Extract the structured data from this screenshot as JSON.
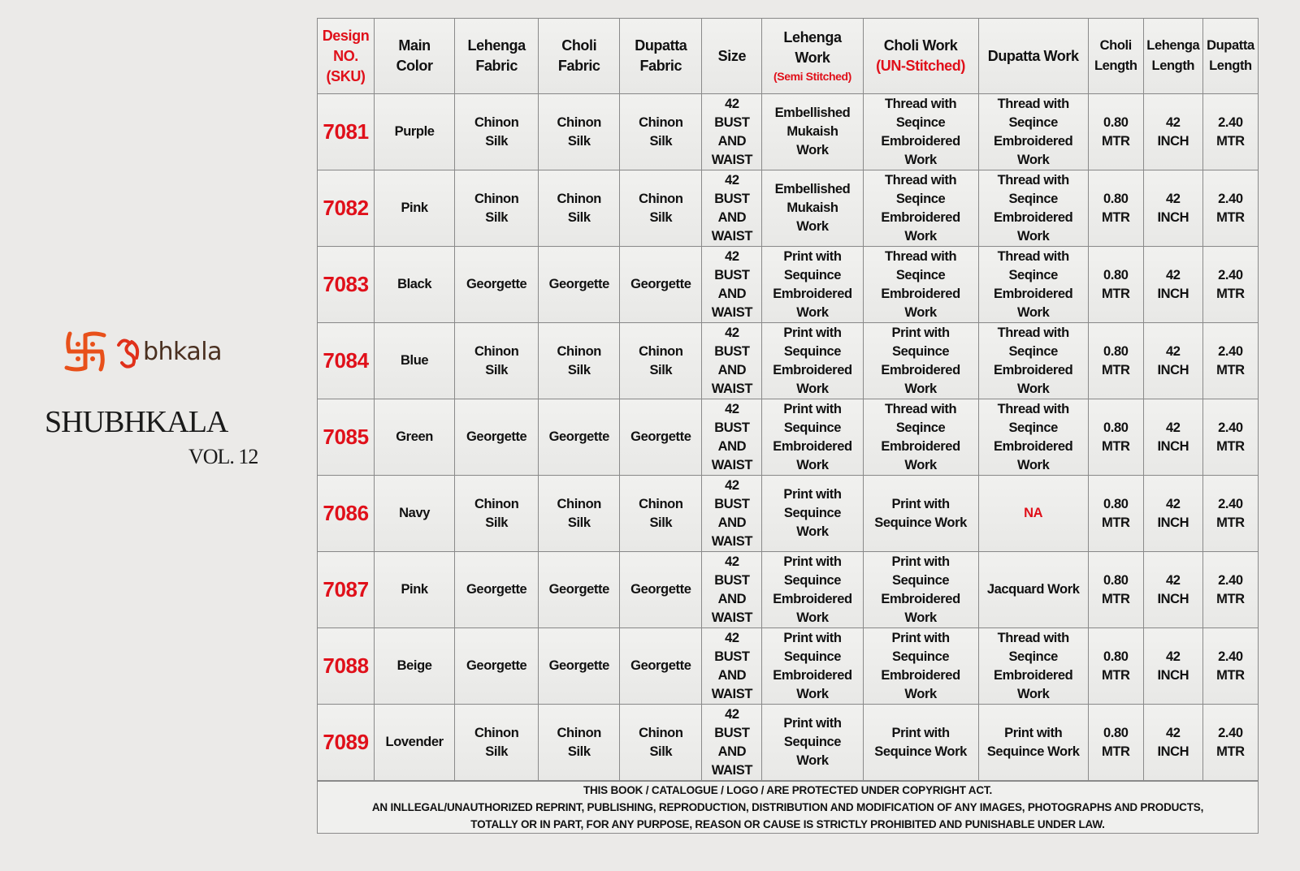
{
  "brand": {
    "logo_text": "Shubhkala",
    "logo_visible_text": "bhkala",
    "title": "SHUBHKALA",
    "volume": "VOL. 12"
  },
  "colors": {
    "accent_red": "#e0101a",
    "logo_orange": "#e8501a",
    "background": "#ebeae8"
  },
  "table": {
    "headers": [
      {
        "label": "Design\nNO.\n(SKU)",
        "red": true
      },
      {
        "label": "Main\nColor"
      },
      {
        "label": "Lehenga\nFabric"
      },
      {
        "label": "Choli\nFabric"
      },
      {
        "label": "Dupatta\nFabric"
      },
      {
        "label": "Size"
      },
      {
        "label": "Lehenga\nWork",
        "sub": "(Semi Stitched)"
      },
      {
        "label": "Choli Work",
        "sub_red_big": "(UN-Stitched)"
      },
      {
        "label": "Dupatta Work"
      },
      {
        "label": "Choli\nLength",
        "narrow": true
      },
      {
        "label": "Lehenga\nLength",
        "narrow": true
      },
      {
        "label": "Dupatta\nLength",
        "narrow": true
      }
    ],
    "rows": [
      [
        "7081",
        "Purple",
        "Chinon\nSilk",
        "Chinon\nSilk",
        "Chinon\nSilk",
        "42\nBUST\nAND\nWAIST",
        "Embellished\nMukaish\nWork",
        "Thread with\nSeqince\nEmbroidered\nWork",
        "Thread with\nSeqince\nEmbroidered\nWork",
        "0.80\nMTR",
        "42\nINCH",
        "2.40\nMTR"
      ],
      [
        "7082",
        "Pink",
        "Chinon\nSilk",
        "Chinon\nSilk",
        "Chinon\nSilk",
        "42\nBUST\nAND\nWAIST",
        "Embellished\nMukaish\nWork",
        "Thread with\nSeqince\nEmbroidered\nWork",
        "Thread with\nSeqince\nEmbroidered\nWork",
        "0.80\nMTR",
        "42\nINCH",
        "2.40\nMTR"
      ],
      [
        "7083",
        "Black",
        "Georgette",
        "Georgette",
        "Georgette",
        "42\nBUST\nAND\nWAIST",
        "Print with\nSequince\nEmbroidered\nWork",
        "Thread with\nSeqince\nEmbroidered\nWork",
        "Thread with\nSeqince\nEmbroidered\nWork",
        "0.80\nMTR",
        "42\nINCH",
        "2.40\nMTR"
      ],
      [
        "7084",
        "Blue",
        "Chinon\nSilk",
        "Chinon\nSilk",
        "Chinon\nSilk",
        "42\nBUST\nAND\nWAIST",
        "Print with\nSequince\nEmbroidered\nWork",
        "Print with\nSequince\nEmbroidered\nWork",
        "Thread with\nSeqince\nEmbroidered\nWork",
        "0.80\nMTR",
        "42\nINCH",
        "2.40\nMTR"
      ],
      [
        "7085",
        "Green",
        "Georgette",
        "Georgette",
        "Georgette",
        "42\nBUST\nAND\nWAIST",
        "Print with\nSequince\nEmbroidered\nWork",
        "Thread with\nSeqince\nEmbroidered\nWork",
        "Thread with\nSeqince\nEmbroidered\nWork",
        "0.80\nMTR",
        "42\nINCH",
        "2.40\nMTR"
      ],
      [
        "7086",
        "Navy",
        "Chinon\nSilk",
        "Chinon\nSilk",
        "Chinon\nSilk",
        "42\nBUST\nAND\nWAIST",
        "Print with\nSequince\nWork",
        "Print with\nSequince Work",
        "NA",
        "0.80\nMTR",
        "42\nINCH",
        "2.40\nMTR"
      ],
      [
        "7087",
        "Pink",
        "Georgette",
        "Georgette",
        "Georgette",
        "42\nBUST\nAND\nWAIST",
        "Print with\nSequince\nEmbroidered\nWork",
        "Print with\nSequince\nEmbroidered\nWork",
        "Jacquard Work",
        "0.80\nMTR",
        "42\nINCH",
        "2.40\nMTR"
      ],
      [
        "7088",
        "Beige",
        "Georgette",
        "Georgette",
        "Georgette",
        "42\nBUST\nAND\nWAIST",
        "Print with\nSequince\nEmbroidered\nWork",
        "Print with\nSequince\nEmbroidered\nWork",
        "Thread with\nSeqince\nEmbroidered\nWork",
        "0.80\nMTR",
        "42\nINCH",
        "2.40\nMTR"
      ],
      [
        "7089",
        "Lovender",
        "Chinon\nSilk",
        "Chinon\nSilk",
        "Chinon\nSilk",
        "42\nBUST\nAND\nWAIST",
        "Print with\nSequince\nWork",
        "Print with\nSequince Work",
        "Print with\nSequince Work",
        "0.80\nMTR",
        "42\nINCH",
        "2.40\nMTR"
      ]
    ]
  },
  "footer": {
    "line1": "THIS BOOK / CATALOGUE / LOGO / ARE PROTECTED UNDER COPYRIGHT ACT.",
    "line2": "AN INLLEGAL/UNAUTHORIZED REPRINT, PUBLISHING, REPRODUCTION, DISTRIBUTION AND MODIFICATION OF ANY IMAGES, PHOTOGRAPHS AND PRODUCTS,",
    "line3": "TOTALLY OR IN PART, FOR ANY PURPOSE, REASON OR CAUSE IS STRICTLY PROHIBITED AND PUNISHABLE UNDER LAW."
  }
}
